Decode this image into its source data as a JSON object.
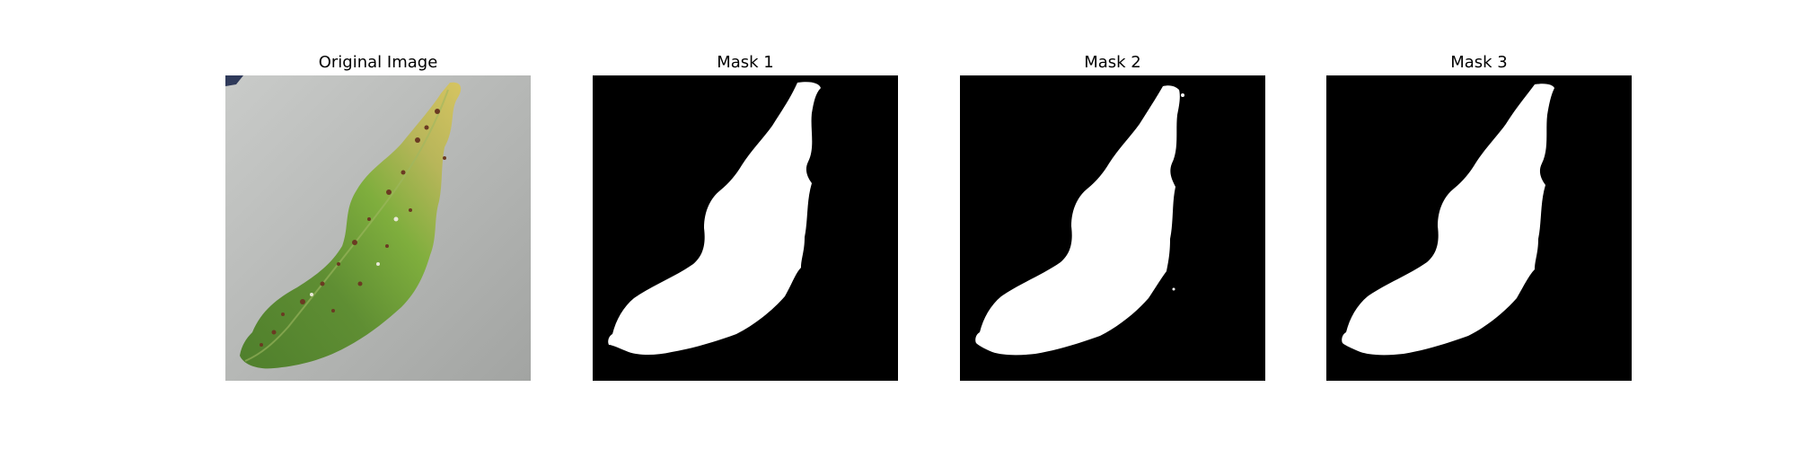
{
  "panels": [
    {
      "title": "Original Image",
      "kind": "photo",
      "subject": "leaf-photo"
    },
    {
      "title": "Mask 1",
      "kind": "mask"
    },
    {
      "title": "Mask 2",
      "kind": "mask"
    },
    {
      "title": "Mask 3",
      "kind": "mask"
    }
  ],
  "colors": {
    "background": "#ffffff",
    "mask_background": "#000000",
    "mask_foreground": "#ffffff",
    "photo_surface": "#b8bab8",
    "leaf_green_dark": "#4f7f2c",
    "leaf_green_light": "#7fae3d",
    "leaf_yellow": "#d6c461",
    "spot_brown": "#6b3a22"
  }
}
